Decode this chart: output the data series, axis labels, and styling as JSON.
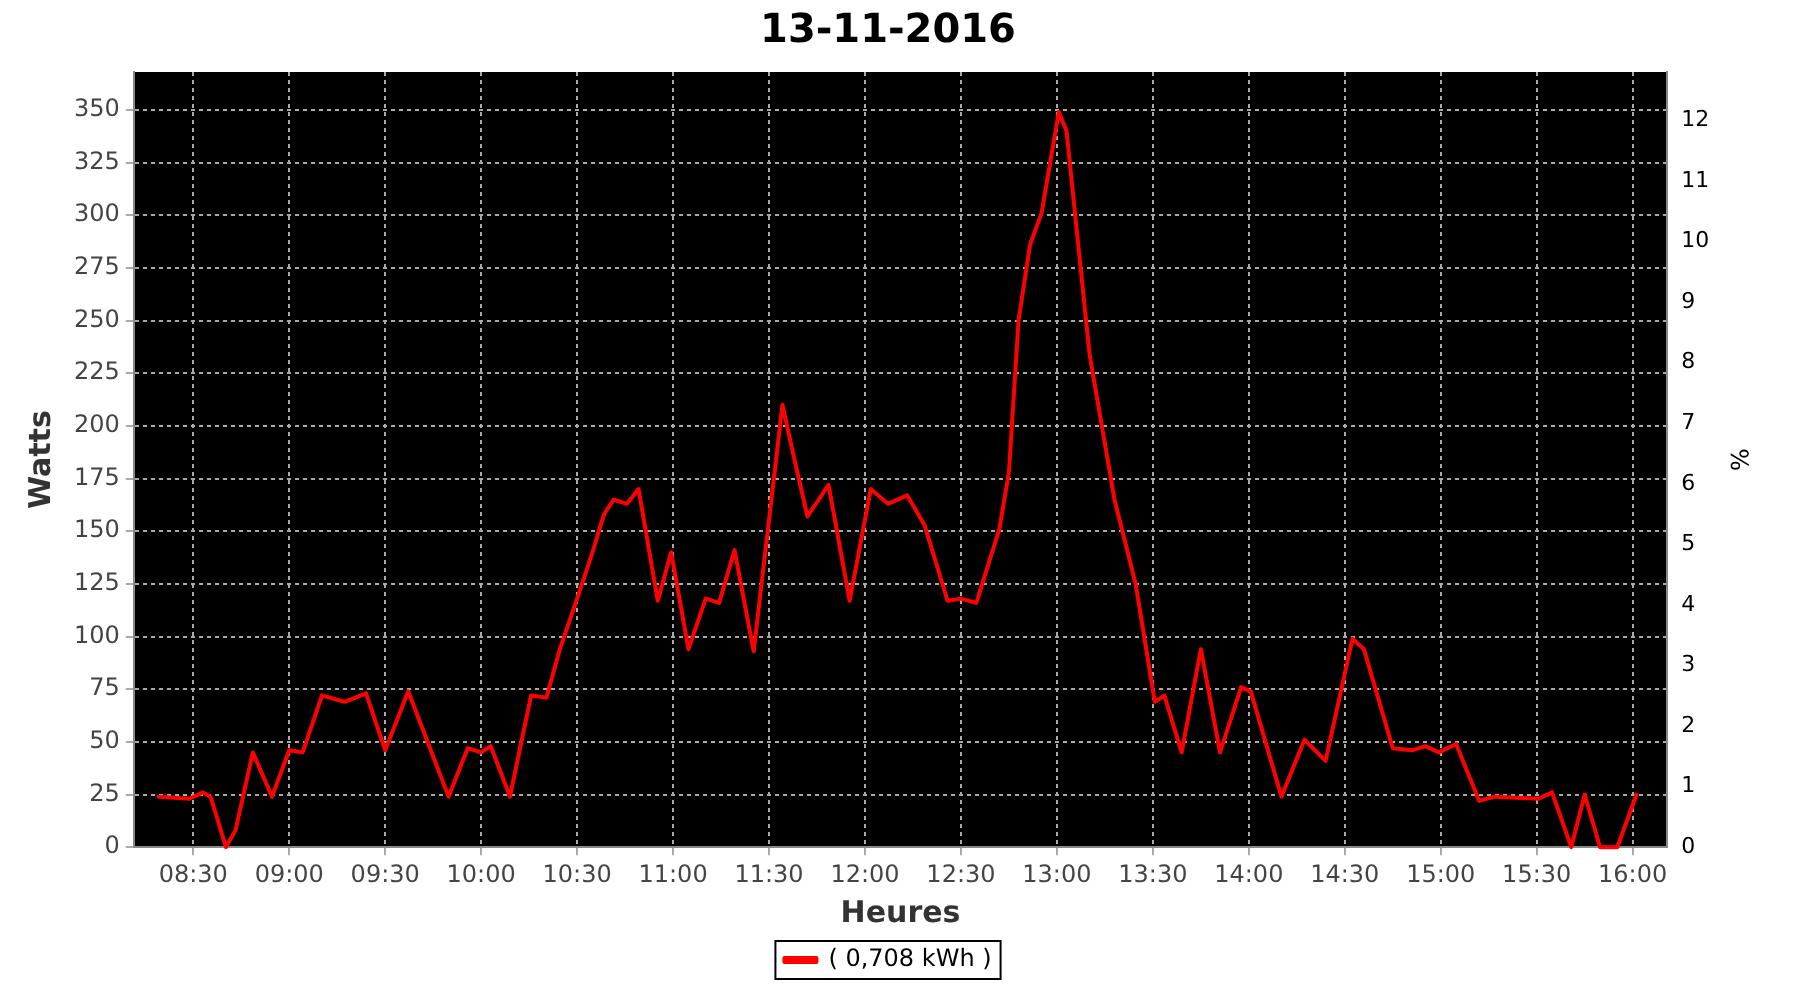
{
  "chart_data": {
    "type": "line",
    "title": "13-11-2016",
    "xlabel": "Heures",
    "ylabel": "Watts",
    "y2label": "%",
    "x": [
      8.32,
      8.48,
      8.55,
      8.59,
      8.67,
      8.72,
      8.81,
      8.91,
      9.0,
      9.07,
      9.17,
      9.29,
      9.4,
      9.5,
      9.62,
      9.83,
      9.93,
      10.0,
      10.05,
      10.15,
      10.26,
      10.34,
      10.41,
      10.5,
      10.58,
      10.64,
      10.69,
      10.76,
      10.82,
      10.92,
      10.99,
      11.08,
      11.17,
      11.24,
      11.32,
      11.42,
      11.57,
      11.63,
      11.7,
      11.81,
      11.92,
      12.03,
      12.12,
      12.22,
      12.31,
      12.43,
      12.5,
      12.58,
      12.7,
      12.75,
      12.8,
      12.86,
      12.92,
      13.01,
      13.05,
      13.17,
      13.3,
      13.41,
      13.51,
      13.56,
      13.65,
      13.75,
      13.85,
      13.96,
      14.01,
      14.17,
      14.29,
      14.4,
      14.54,
      14.6,
      14.75,
      14.85,
      14.92,
      14.99,
      15.08,
      15.2,
      15.28,
      15.51,
      15.58,
      15.68,
      15.75,
      15.83,
      15.92,
      16.02
    ],
    "series": [
      {
        "name": "( 0,708 kWh )",
        "color": "#ff0000",
        "values": [
          24,
          23,
          26,
          24,
          0,
          8,
          45,
          24,
          46,
          45,
          72,
          69,
          73,
          46,
          74,
          24,
          47,
          45,
          48,
          24,
          72,
          71,
          94,
          118,
          140,
          158,
          165,
          163,
          170,
          117,
          140,
          94,
          118,
          116,
          141,
          93,
          210,
          185,
          157,
          172,
          117,
          170,
          163,
          167,
          153,
          117,
          118,
          116,
          151,
          178,
          250,
          286,
          301,
          349,
          340,
          234,
          165,
          125,
          69,
          72,
          45,
          94,
          45,
          76,
          74,
          24,
          51,
          41,
          99,
          94,
          47,
          46,
          48,
          45,
          49,
          22,
          24,
          23,
          26,
          0,
          25,
          0,
          0,
          25
        ]
      }
    ],
    "xlim": [
      8.19,
      16.18
    ],
    "xticks": [
      {
        "value": 8.5,
        "label": "08:30"
      },
      {
        "value": 9,
        "label": "09:00"
      },
      {
        "value": 9.5,
        "label": "09:30"
      },
      {
        "value": 10,
        "label": "10:00"
      },
      {
        "value": 10.5,
        "label": "10:30"
      },
      {
        "value": 11,
        "label": "11:00"
      },
      {
        "value": 11.5,
        "label": "11:30"
      },
      {
        "value": 12,
        "label": "12:00"
      },
      {
        "value": 12.5,
        "label": "12:30"
      },
      {
        "value": 13,
        "label": "13:00"
      },
      {
        "value": 13.5,
        "label": "13:30"
      },
      {
        "value": 14,
        "label": "14:00"
      },
      {
        "value": 14.5,
        "label": "14:30"
      },
      {
        "value": 15,
        "label": "15:00"
      },
      {
        "value": 15.5,
        "label": "15:30"
      },
      {
        "value": 16,
        "label": "16:00"
      }
    ],
    "ylim": [
      0,
      368
    ],
    "yticks": [
      0,
      25,
      50,
      75,
      100,
      125,
      150,
      175,
      200,
      225,
      250,
      275,
      300,
      325,
      350
    ],
    "y2lim": [
      0,
      12.8
    ],
    "y2ticks": [
      0,
      1,
      2,
      3,
      4,
      5,
      6,
      7,
      8,
      9,
      10,
      11,
      12
    ],
    "grid": true,
    "legend": "bottom",
    "marker": "none",
    "line_style": "solid"
  }
}
